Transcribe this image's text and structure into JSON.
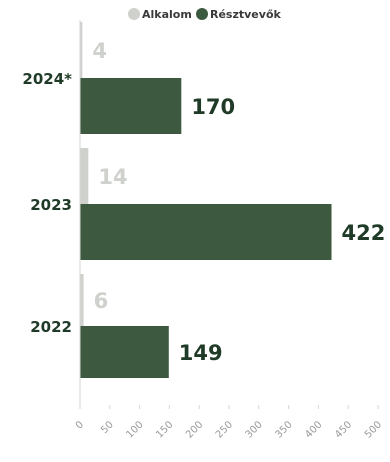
{
  "chart_data": {
    "type": "bar",
    "orientation": "horizontal",
    "categories": [
      "2024*",
      "2023",
      "2022"
    ],
    "series": [
      {
        "name": "Alkalom",
        "values": [
          4,
          14,
          6
        ],
        "color": "#cfd1cd"
      },
      {
        "name": "Résztvevők",
        "values": [
          170,
          422,
          149
        ],
        "color": "#3d5a41"
      }
    ],
    "xlim": [
      0,
      500
    ],
    "x_ticks": [
      0,
      50,
      100,
      150,
      200,
      250,
      300,
      350,
      400,
      450,
      500
    ],
    "grid": false,
    "legend_position": "top-center",
    "title": "",
    "xlabel": "",
    "ylabel": ""
  }
}
